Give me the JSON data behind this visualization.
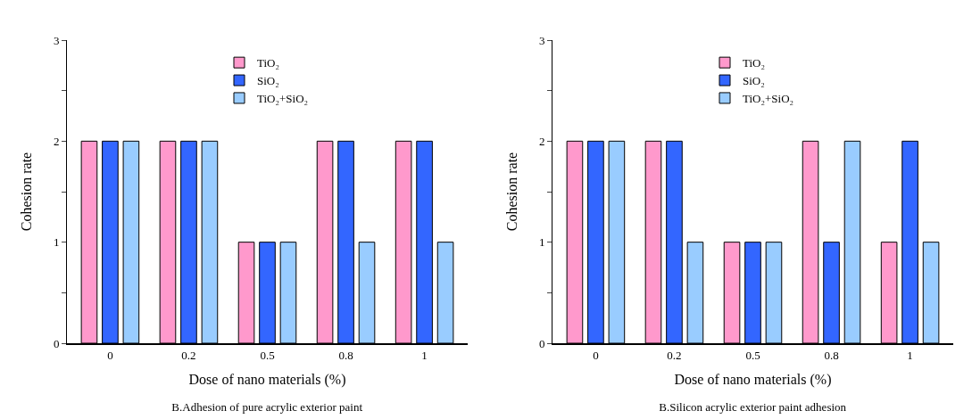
{
  "chart_data": [
    {
      "type": "bar",
      "title": "B.Adhesion of pure acrylic exterior paint",
      "xlabel": "Dose of nano materials (%)",
      "ylabel": "Cohesion rate",
      "categories": [
        "0",
        "0.2",
        "0.5",
        "0.8",
        "1"
      ],
      "ylim": [
        0,
        3
      ],
      "yticks": [
        0,
        {
          "value": 0.5,
          "label": null
        },
        1,
        {
          "value": 1.5,
          "label": null
        },
        2,
        {
          "value": 2.5,
          "label": null
        },
        3
      ],
      "legend": "top",
      "grid": false,
      "series": [
        {
          "name": "TiO₂",
          "color": "#ff99cc",
          "values": [
            2,
            2,
            1,
            2,
            2
          ]
        },
        {
          "name": "SiO₂",
          "color": "#3366ff",
          "values": [
            2,
            2,
            1,
            2,
            2
          ]
        },
        {
          "name": "TiO₂+SiO₂",
          "color": "#99ccff",
          "values": [
            2,
            2,
            1,
            1,
            1
          ]
        }
      ]
    },
    {
      "type": "bar",
      "title": "B.Silicon acrylic exterior paint adhesion",
      "xlabel": "Dose of nano materials (%)",
      "ylabel": "Cohesion rate",
      "categories": [
        "0",
        "0.2",
        "0.5",
        "0.8",
        "1"
      ],
      "ylim": [
        0,
        3
      ],
      "yticks": [
        0,
        {
          "value": 0.5,
          "label": null
        },
        1,
        {
          "value": 1.5,
          "label": null
        },
        2,
        {
          "value": 2.5,
          "label": null
        },
        3
      ],
      "legend": "top",
      "grid": false,
      "series": [
        {
          "name": "TiO₂",
          "color": "#ff99cc",
          "values": [
            2,
            2,
            1,
            2,
            1
          ]
        },
        {
          "name": "SiO₂",
          "color": "#3366ff",
          "values": [
            2,
            2,
            1,
            1,
            2
          ]
        },
        {
          "name": "TiO₂+SiO₂",
          "color": "#99ccff",
          "values": [
            2,
            1,
            1,
            2,
            1
          ]
        }
      ]
    }
  ]
}
